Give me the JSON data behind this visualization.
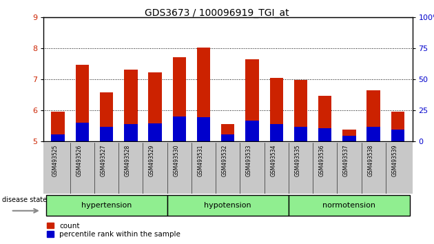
{
  "title": "GDS3673 / 100096919_TGI_at",
  "samples": [
    "GSM493525",
    "GSM493526",
    "GSM493527",
    "GSM493528",
    "GSM493529",
    "GSM493530",
    "GSM493531",
    "GSM493532",
    "GSM493533",
    "GSM493534",
    "GSM493535",
    "GSM493536",
    "GSM493537",
    "GSM493538",
    "GSM493539"
  ],
  "red_tops": [
    5.97,
    7.47,
    6.58,
    7.32,
    7.22,
    7.72,
    8.02,
    5.55,
    7.65,
    7.05,
    6.98,
    6.48,
    5.38,
    6.65,
    5.97
  ],
  "blue_tops": [
    5.22,
    5.6,
    5.48,
    5.55,
    5.58,
    5.8,
    5.78,
    5.22,
    5.68,
    5.55,
    5.48,
    5.42,
    5.18,
    5.48,
    5.38
  ],
  "y_min": 5.0,
  "y_max": 9.0,
  "y_ticks_left": [
    5,
    6,
    7,
    8,
    9
  ],
  "y_ticks_right_vals": [
    0,
    25,
    50,
    75,
    100
  ],
  "groups": [
    {
      "label": "hypertension",
      "start": 0,
      "end": 5
    },
    {
      "label": "hypotension",
      "start": 5,
      "end": 10
    },
    {
      "label": "normotension",
      "start": 10,
      "end": 15
    }
  ],
  "bar_color_red": "#CC2200",
  "bar_color_blue": "#0000CC",
  "bar_width": 0.55,
  "tick_label_color_left": "#CC2200",
  "tick_label_color_right": "#0000CC",
  "disease_state_label": "disease state",
  "legend_count": "count",
  "legend_pct": "percentile rank within the sample",
  "background_color": "#FFFFFF",
  "xlabel_bg": "#C8C8C8",
  "group_color_light": "#90EE90",
  "group_color_dark": "#40C840"
}
